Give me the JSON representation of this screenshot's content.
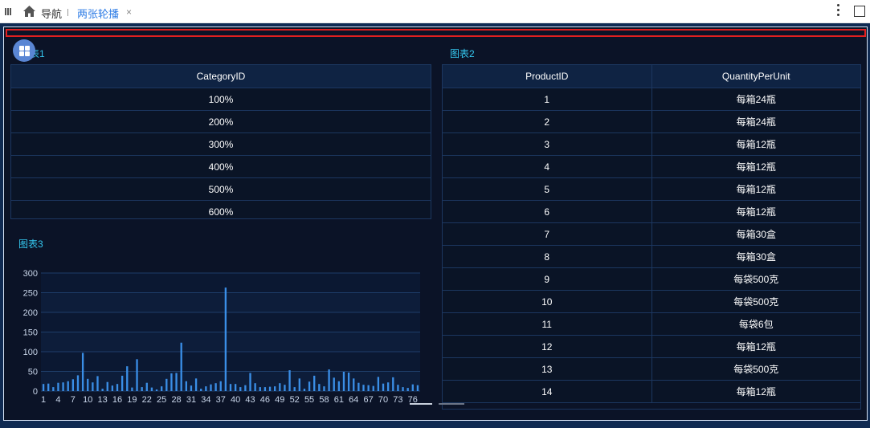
{
  "topbar": {
    "nav_label": "导航",
    "tab_label": "两张轮播",
    "close_glyph": "×"
  },
  "chart1": {
    "title": "图表1",
    "header": "CategoryID",
    "rows": [
      "100%",
      "200%",
      "300%",
      "400%",
      "500%",
      "600%"
    ]
  },
  "chart2": {
    "title": "图表2",
    "headers": [
      "ProductID",
      "QuantityPerUnit"
    ],
    "rows": [
      [
        "1",
        "每箱24瓶"
      ],
      [
        "2",
        "每箱24瓶"
      ],
      [
        "3",
        "每箱12瓶"
      ],
      [
        "4",
        "每箱12瓶"
      ],
      [
        "5",
        "每箱12瓶"
      ],
      [
        "6",
        "每箱12瓶"
      ],
      [
        "7",
        "每箱30盒"
      ],
      [
        "8",
        "每箱30盒"
      ],
      [
        "9",
        "每袋500克"
      ],
      [
        "10",
        "每袋500克"
      ],
      [
        "11",
        "每袋6包"
      ],
      [
        "12",
        "每箱12瓶"
      ],
      [
        "13",
        "每袋500克"
      ],
      [
        "14",
        "每箱12瓶"
      ]
    ]
  },
  "chart_data": {
    "type": "bar",
    "title": "图表3",
    "ylim": [
      0,
      300
    ],
    "yticks": [
      0,
      50,
      100,
      150,
      200,
      250,
      300
    ],
    "xtick_labels": [
      "1",
      "4",
      "7",
      "10",
      "13",
      "16",
      "19",
      "22",
      "25",
      "28",
      "31",
      "34",
      "37",
      "40",
      "43",
      "46",
      "49",
      "52",
      "55",
      "58",
      "61",
      "64",
      "67",
      "70",
      "73",
      "76"
    ],
    "categories": [
      1,
      2,
      3,
      4,
      5,
      6,
      7,
      8,
      9,
      10,
      11,
      12,
      13,
      14,
      15,
      16,
      17,
      18,
      19,
      20,
      21,
      22,
      23,
      24,
      25,
      26,
      27,
      28,
      29,
      30,
      31,
      32,
      33,
      34,
      35,
      36,
      37,
      38,
      39,
      40,
      41,
      42,
      43,
      44,
      45,
      46,
      47,
      48,
      49,
      50,
      51,
      52,
      53,
      54,
      55,
      56,
      57,
      58,
      59,
      60,
      61,
      62,
      63,
      64,
      65,
      66,
      67,
      68,
      69,
      70,
      71,
      72,
      73,
      74,
      75,
      76,
      77
    ],
    "values": [
      18,
      19,
      10,
      21,
      22,
      25,
      30,
      40,
      97,
      31,
      22,
      38,
      6,
      23,
      14,
      18,
      39,
      63,
      9,
      81,
      10,
      21,
      9,
      4,
      12,
      31,
      45,
      46,
      123,
      25,
      14,
      32,
      6,
      12,
      17,
      20,
      25,
      263,
      18,
      18,
      10,
      15,
      46,
      20,
      10,
      10,
      11,
      12,
      20,
      16,
      53,
      10,
      32,
      6,
      24,
      39,
      18,
      12,
      55,
      34,
      25,
      49,
      47,
      32,
      21,
      16,
      15,
      13,
      36,
      19,
      22,
      35,
      16,
      10,
      8,
      17,
      15
    ],
    "color": "#3a8ee6",
    "grid": true
  }
}
